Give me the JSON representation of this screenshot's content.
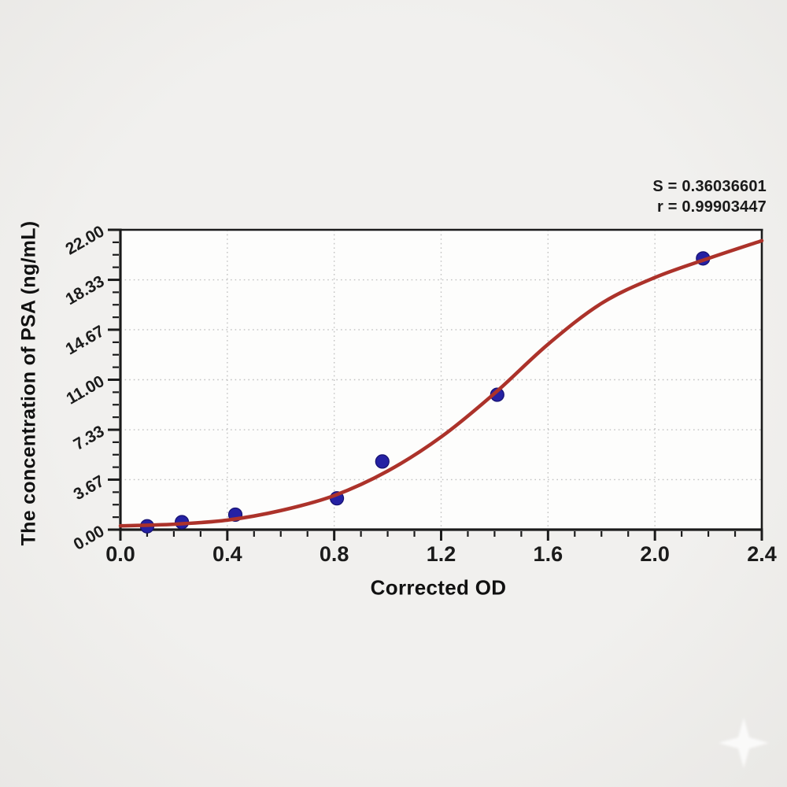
{
  "chart_data": {
    "type": "scatter",
    "title": "",
    "xlabel": "Corrected OD",
    "ylabel": "The concentration of PSA (ng/mL)",
    "xlim": [
      0.0,
      2.4
    ],
    "ylim": [
      0.0,
      22.0
    ],
    "xticks": [
      0.0,
      0.4,
      0.8,
      1.2,
      1.6,
      2.0,
      2.4
    ],
    "xtick_labels": [
      "0.0",
      "0.4",
      "0.8",
      "1.2",
      "1.6",
      "2.0",
      "2.4"
    ],
    "yticks": [
      0.0,
      3.67,
      7.33,
      11.0,
      14.67,
      18.33,
      22.0
    ],
    "ytick_labels": [
      "0.00",
      "3.67",
      "7.33",
      "11.00",
      "14.67",
      "18.33",
      "22.00"
    ],
    "x_minor_divisions": 24,
    "y_minor_divisions": 24,
    "grid": "dotted-major",
    "legend": "none",
    "annotations": {
      "s": "S = 0.36036601",
      "r": "r = 0.99903447"
    },
    "colors": {
      "curve": "#ac322a",
      "marker_fill": "#2521a3",
      "marker_edge": "#161170",
      "grid": "#c2c2c2",
      "axis": "#1b1b1b",
      "plot_bg": "#fdfdfc"
    },
    "series": [
      {
        "name": "standard-points",
        "type": "scatter",
        "points": [
          [
            0.1,
            0.25
          ],
          [
            0.23,
            0.55
          ],
          [
            0.43,
            1.1
          ],
          [
            0.81,
            2.3
          ],
          [
            0.98,
            5.0
          ],
          [
            1.41,
            9.9
          ],
          [
            2.18,
            19.9
          ]
        ]
      },
      {
        "name": "4pl-fit-curve",
        "type": "line",
        "points": [
          [
            0.0,
            0.28
          ],
          [
            0.2,
            0.4
          ],
          [
            0.4,
            0.7
          ],
          [
            0.6,
            1.4
          ],
          [
            0.8,
            2.5
          ],
          [
            1.0,
            4.3
          ],
          [
            1.2,
            6.8
          ],
          [
            1.4,
            10.0
          ],
          [
            1.6,
            13.6
          ],
          [
            1.8,
            16.6
          ],
          [
            2.0,
            18.5
          ],
          [
            2.2,
            19.9
          ],
          [
            2.4,
            21.2
          ]
        ]
      }
    ]
  }
}
